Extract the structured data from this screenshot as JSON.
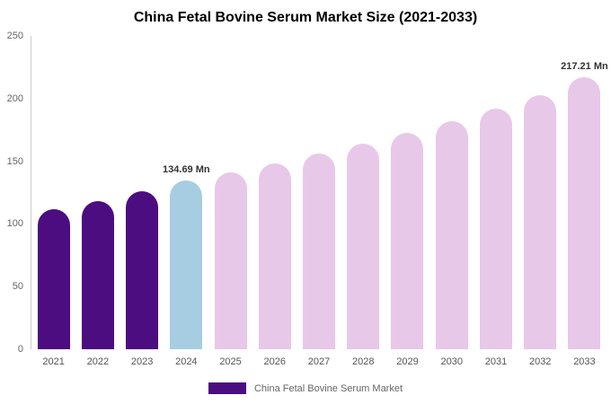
{
  "chart_data": {
    "type": "bar",
    "title": "China Fetal Bovine Serum Market Size (2021-2033)",
    "unit": "Mn",
    "categories": [
      "2021",
      "2022",
      "2023",
      "2024",
      "2025",
      "2026",
      "2027",
      "2028",
      "2029",
      "2030",
      "2031",
      "2032",
      "2033"
    ],
    "values": [
      112,
      118,
      126,
      134.69,
      141,
      148,
      156,
      164,
      173,
      182,
      192,
      203,
      217.21
    ],
    "bar_colors": [
      "#4B0D80",
      "#4B0D80",
      "#4B0D80",
      "#A6CDE2",
      "#E8C8E8",
      "#E8C8E8",
      "#E8C8E8",
      "#E8C8E8",
      "#E8C8E8",
      "#E8C8E8",
      "#E8C8E8",
      "#E8C8E8",
      "#E8C8E8"
    ],
    "data_labels": [
      {
        "index": 3,
        "text": "134.69 Mn"
      },
      {
        "index": 12,
        "text": "217.21 Mn"
      }
    ],
    "ylim": [
      0,
      250
    ],
    "yticks": [
      0,
      50,
      100,
      150,
      200,
      250
    ],
    "grid": false,
    "xlabel": "",
    "ylabel": "",
    "legend": {
      "position": "bottom",
      "items": [
        {
          "label": "China Fetal Bovine Serum Market",
          "color": "#4B0D80"
        }
      ]
    },
    "colors": {
      "historical": "#4B0D80",
      "base_year": "#A6CDE2",
      "forecast": "#E8C8E8",
      "background": "#ffffff"
    }
  }
}
